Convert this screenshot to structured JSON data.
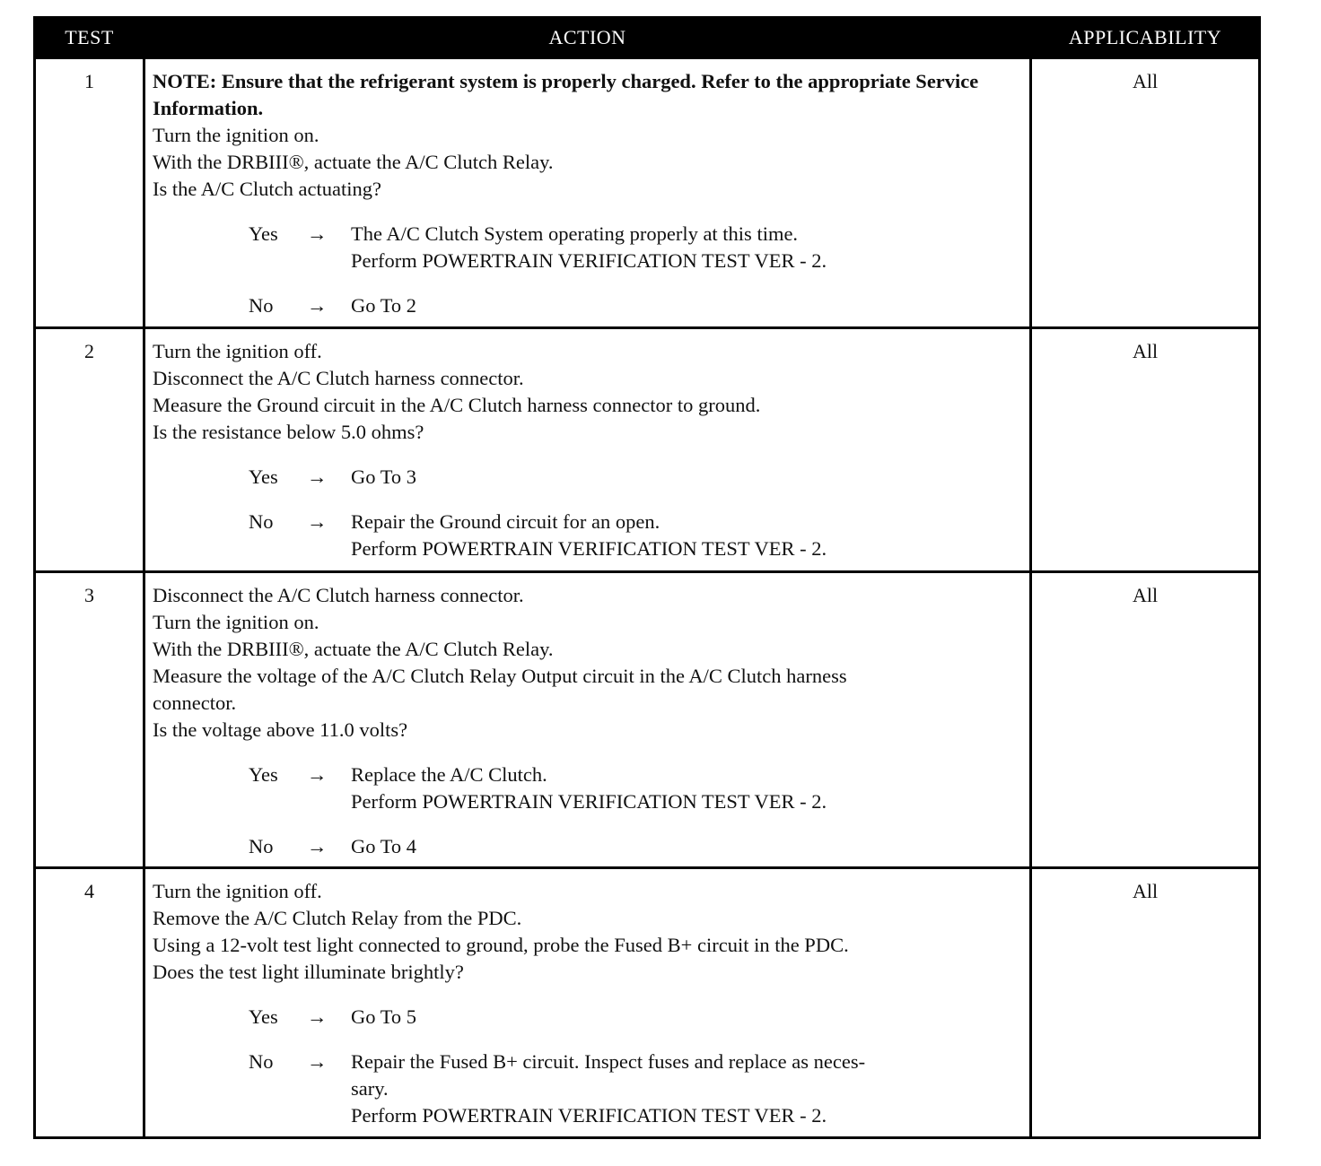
{
  "header": {
    "test": "TEST",
    "action": "ACTION",
    "applicability": "APPLICABILITY"
  },
  "arrow_glyph": "→",
  "tests": [
    {
      "number": "1",
      "applicability": "All",
      "note": "NOTE: Ensure that the refrigerant system is properly charged. Refer to the appropriate Service Information.",
      "lines": [
        "Turn the ignition on.",
        "With the DRBIII®, actuate the A/C Clutch Relay.",
        "Is the A/C Clutch actuating?"
      ],
      "outcomes": [
        {
          "answer": "Yes",
          "lines": [
            "The A/C Clutch System operating properly at this time.",
            "Perform POWERTRAIN VERIFICATION TEST VER - 2."
          ]
        },
        {
          "answer": "No",
          "lines": [
            "Go To   2"
          ]
        }
      ]
    },
    {
      "number": "2",
      "applicability": "All",
      "lines": [
        "Turn the ignition off.",
        "Disconnect the A/C Clutch harness connector.",
        "Measure the Ground circuit in the A/C Clutch harness connector to ground.",
        "Is the resistance below 5.0 ohms?"
      ],
      "outcomes": [
        {
          "answer": "Yes",
          "lines": [
            "Go To   3"
          ]
        },
        {
          "answer": "No",
          "lines": [
            "Repair the Ground circuit for an open.",
            "Perform POWERTRAIN VERIFICATION TEST VER - 2."
          ]
        }
      ]
    },
    {
      "number": "3",
      "applicability": "All",
      "lines": [
        "Disconnect the A/C Clutch harness connector.",
        "Turn the ignition on.",
        "With the DRBIII®, actuate the A/C Clutch Relay.",
        "Measure the voltage of the A/C Clutch Relay Output circuit in the A/C Clutch harness",
        "connector.",
        "Is the voltage above 11.0 volts?"
      ],
      "outcomes": [
        {
          "answer": "Yes",
          "lines": [
            "Replace the A/C Clutch.",
            "Perform POWERTRAIN VERIFICATION TEST VER - 2."
          ]
        },
        {
          "answer": "No",
          "lines": [
            "Go To   4"
          ]
        }
      ]
    },
    {
      "number": "4",
      "applicability": "All",
      "lines": [
        "Turn the ignition off.",
        "Remove the A/C Clutch Relay from the PDC.",
        "Using a 12-volt test light connected to ground, probe the Fused B+ circuit in the PDC.",
        "Does the test light illuminate brightly?"
      ],
      "outcomes": [
        {
          "answer": "Yes",
          "lines": [
            "Go To   5"
          ]
        },
        {
          "answer": "No",
          "lines": [
            "Repair the Fused B+ circuit. Inspect fuses and replace as neces-",
            "sary.",
            "Perform POWERTRAIN VERIFICATION TEST VER - 2."
          ]
        }
      ]
    }
  ]
}
